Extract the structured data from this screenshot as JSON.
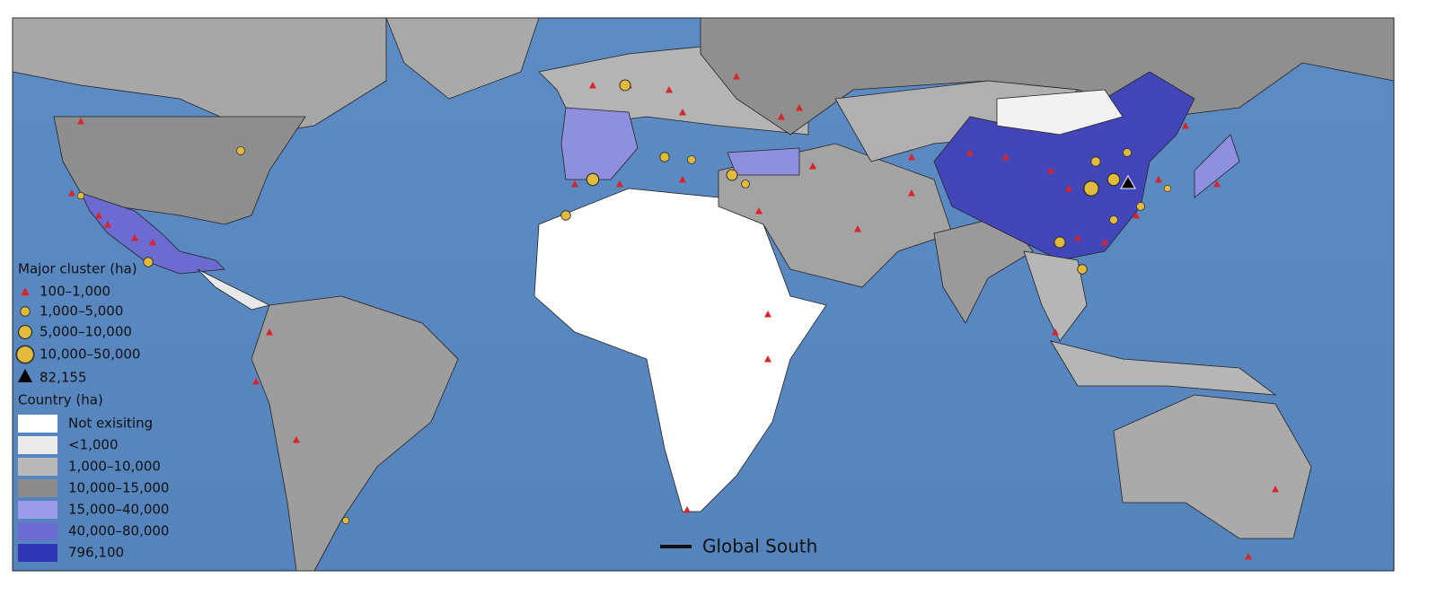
{
  "legend": {
    "cluster_title": "Major cluster (ha)",
    "cluster_items": [
      "100–1,000",
      "1,000–5,000",
      "5,000–10,000",
      "10,000–50,000",
      "82,155"
    ],
    "country_title": "Country (ha)",
    "country_items": [
      "Not exisiting",
      "<1,000",
      "1,000–10,000",
      "10,000–15,000",
      "15,000–40,000",
      "40,000–80,000",
      "796,100"
    ]
  },
  "global_south_label": "Global South"
}
